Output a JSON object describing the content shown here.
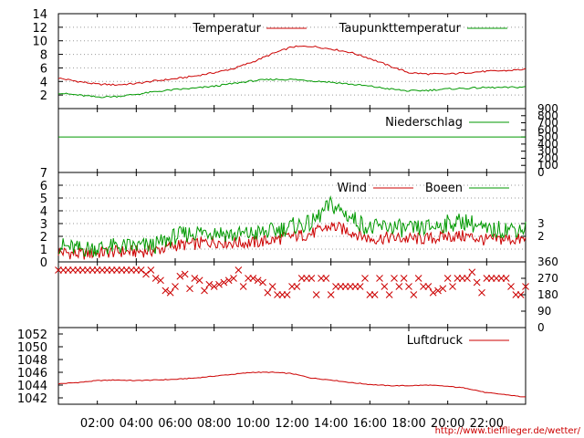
{
  "footer_url": "http://www.tiefflieger.de/wetter/",
  "x_ticks": [
    "02:00",
    "04:00",
    "06:00",
    "08:00",
    "10:00",
    "12:00",
    "14:00",
    "16:00",
    "18:00",
    "20:00",
    "22:00"
  ],
  "chart_data": [
    {
      "type": "line",
      "panel": "temperature",
      "title": "",
      "xlabel": "",
      "ylabel": "",
      "ylim": [
        0,
        14
      ],
      "y_ticks": [
        2,
        4,
        6,
        8,
        10,
        12,
        14
      ],
      "grid": true,
      "legend_position": "top",
      "x_hours": [
        0,
        1,
        2,
        3,
        4,
        5,
        6,
        7,
        8,
        9,
        10,
        11,
        12,
        13,
        14,
        15,
        16,
        17,
        18,
        19,
        20,
        21,
        22,
        23,
        24
      ],
      "series": [
        {
          "name": "Temperatur",
          "color": "#cc0000",
          "values": [
            4.5,
            4.0,
            3.6,
            3.5,
            3.7,
            4.1,
            4.4,
            4.8,
            5.3,
            5.9,
            6.9,
            8.1,
            9.1,
            9.2,
            8.8,
            8.3,
            7.4,
            6.3,
            5.3,
            5.1,
            5.1,
            5.3,
            5.5,
            5.6,
            5.8
          ]
        },
        {
          "name": "Taupunkttemperatur",
          "color": "#009900",
          "values": [
            2.3,
            2.0,
            1.7,
            1.8,
            2.1,
            2.5,
            2.8,
            3.0,
            3.3,
            3.7,
            4.1,
            4.3,
            4.3,
            4.1,
            3.9,
            3.6,
            3.3,
            2.9,
            2.6,
            2.7,
            2.9,
            3.0,
            3.1,
            3.1,
            3.2
          ]
        }
      ]
    },
    {
      "type": "line",
      "panel": "precipitation",
      "title": "",
      "ylim": [
        0,
        900
      ],
      "y_ticks_right": [
        0,
        100,
        200,
        300,
        400,
        500,
        600,
        700,
        800,
        900
      ],
      "x_hours": [
        0,
        24
      ],
      "series": [
        {
          "name": "Niederschlag",
          "color": "#009900",
          "values": [
            500,
            500
          ]
        }
      ]
    },
    {
      "type": "line",
      "panel": "wind",
      "title": "",
      "ylim": [
        0,
        7
      ],
      "y_ticks": [
        0,
        1,
        2,
        3,
        4,
        5,
        6,
        7
      ],
      "y_ticks_right": [
        2,
        3
      ],
      "grid": true,
      "legend_position": "top",
      "x_hours": [
        0,
        1,
        2,
        3,
        4,
        5,
        6,
        7,
        8,
        9,
        10,
        11,
        12,
        13,
        14,
        15,
        16,
        17,
        18,
        19,
        20,
        21,
        22,
        23,
        24
      ],
      "series": [
        {
          "name": "Wind",
          "color": "#cc0000",
          "values": [
            0.8,
            0.6,
            0.7,
            0.8,
            0.8,
            0.9,
            1.3,
            1.4,
            1.6,
            1.5,
            1.5,
            1.7,
            2.0,
            2.2,
            2.8,
            2.4,
            1.8,
            1.9,
            1.8,
            1.8,
            2.0,
            2.0,
            1.7,
            1.8,
            1.7
          ]
        },
        {
          "name": "Boeen",
          "color": "#009900",
          "values": [
            1.3,
            1.0,
            1.1,
            1.2,
            1.2,
            1.3,
            2.0,
            2.3,
            2.4,
            2.1,
            2.2,
            2.4,
            2.8,
            3.0,
            4.5,
            3.5,
            2.6,
            2.8,
            2.5,
            2.7,
            3.0,
            3.2,
            2.4,
            2.6,
            2.6
          ]
        }
      ]
    },
    {
      "type": "scatter",
      "panel": "wind_direction",
      "title": "",
      "ylim": [
        0,
        360
      ],
      "y_ticks_right": [
        0,
        90,
        180,
        270,
        360
      ],
      "marker_color": "#cc0000",
      "x_hours": [
        0,
        1,
        2,
        3,
        4,
        5,
        6,
        7,
        8,
        9,
        10,
        11,
        12,
        13,
        14,
        15,
        16,
        17,
        18,
        19,
        20,
        21,
        22,
        23,
        24
      ],
      "values": [
        315,
        315,
        315,
        315,
        315,
        270,
        225,
        270,
        225,
        270,
        270,
        225,
        225,
        225,
        225,
        225,
        225,
        225,
        225,
        225,
        270,
        270,
        225,
        225,
        225
      ]
    },
    {
      "type": "line",
      "panel": "pressure",
      "title": "",
      "ylim": [
        1041,
        1053
      ],
      "y_ticks": [
        1042,
        1044,
        1046,
        1048,
        1050,
        1052
      ],
      "legend_position": "top-right",
      "x_hours": [
        0,
        1,
        2,
        3,
        4,
        5,
        6,
        7,
        8,
        9,
        10,
        11,
        12,
        13,
        14,
        15,
        16,
        17,
        18,
        19,
        20,
        21,
        22,
        23,
        24
      ],
      "series": [
        {
          "name": "Luftdruck",
          "color": "#cc0000",
          "values": [
            1044.2,
            1044.4,
            1044.7,
            1044.8,
            1044.7,
            1044.8,
            1044.9,
            1045.1,
            1045.4,
            1045.7,
            1046.0,
            1046.0,
            1045.8,
            1045.1,
            1044.8,
            1044.4,
            1044.1,
            1043.9,
            1043.9,
            1044.0,
            1043.8,
            1043.5,
            1042.8,
            1042.5,
            1042.1
          ]
        }
      ]
    }
  ]
}
